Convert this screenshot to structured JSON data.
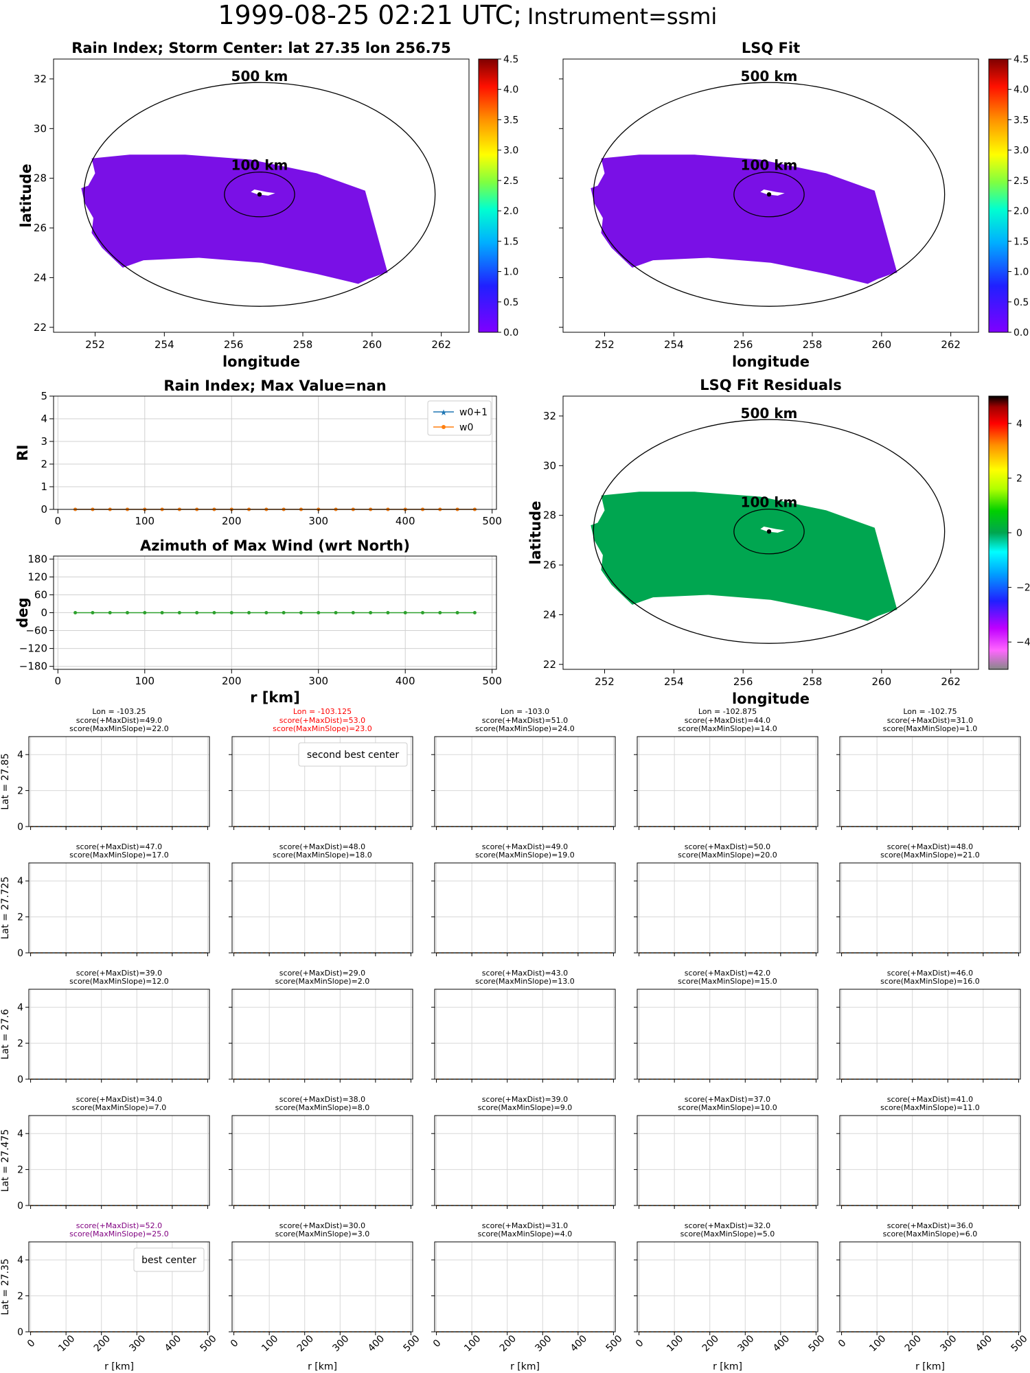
{
  "page": {
    "title_main": "1999-08-25 02:21 UTC;",
    "title_instrument": "Instrument=ssmi"
  },
  "chart_data": [
    {
      "id": "rain-index-map",
      "type": "heatmap",
      "title": "Rain Index; Storm Center: lat 27.35 lon 256.75",
      "xlabel": "longitude",
      "ylabel": "latitude",
      "xlim": [
        250.8,
        262.8
      ],
      "ylim": [
        21.8,
        32.8
      ],
      "xticks": [
        252,
        254,
        256,
        258,
        260,
        262
      ],
      "yticks": [
        22,
        24,
        26,
        28,
        30,
        32
      ],
      "center": {
        "lon": 256.75,
        "lat": 27.35
      },
      "rings": [
        {
          "label": "500 km"
        },
        {
          "label": "100 km"
        }
      ],
      "field_value": 0.0,
      "field_color": "#7a10e6",
      "colorbar": {
        "min": 0,
        "max": 4.5,
        "ticks": [
          "0.0",
          "0.5",
          "1.0",
          "1.5",
          "2.0",
          "2.5",
          "3.0",
          "3.5",
          "4.0",
          "4.5"
        ],
        "colormap": "rainbow"
      }
    },
    {
      "id": "lsq-fit-map",
      "type": "heatmap",
      "title": "LSQ Fit",
      "xlabel": "longitude",
      "ylabel": "",
      "xlim": [
        250.8,
        262.8
      ],
      "ylim": [
        21.8,
        32.8
      ],
      "xticks": [
        252,
        254,
        256,
        258,
        260,
        262
      ],
      "center": {
        "lon": 256.75,
        "lat": 27.35
      },
      "rings": [
        {
          "label": "500 km"
        },
        {
          "label": "100 km"
        }
      ],
      "field_value": 0.0,
      "field_color": "#7a10e6",
      "colorbar": {
        "min": 0,
        "max": 4.5,
        "ticks": [
          "0.0",
          "0.5",
          "1.0",
          "1.5",
          "2.0",
          "2.5",
          "3.0",
          "3.5",
          "4.0",
          "4.5"
        ],
        "colormap": "rainbow"
      }
    },
    {
      "id": "rain-index-profile",
      "type": "line",
      "title": "Rain Index; Max Value=nan",
      "xlabel": "",
      "ylabel": "RI",
      "xlim": [
        -5,
        505
      ],
      "ylim": [
        0,
        5
      ],
      "xticks": [
        0,
        100,
        200,
        300,
        400,
        500
      ],
      "yticks": [
        0,
        1,
        2,
        3,
        4,
        5
      ],
      "grid": true,
      "legend": "top-right",
      "x": [
        20,
        40,
        60,
        80,
        100,
        120,
        140,
        160,
        180,
        200,
        220,
        240,
        260,
        280,
        300,
        320,
        340,
        360,
        380,
        400,
        420,
        440,
        460,
        480
      ],
      "series": [
        {
          "name": "w0+1",
          "color": "#1f77b4",
          "marker": "star",
          "values": [
            0,
            0,
            0,
            0,
            0,
            0,
            0,
            0,
            0,
            0,
            0,
            0,
            0,
            0,
            0,
            0,
            0,
            0,
            0,
            0,
            0,
            0,
            0,
            0
          ]
        },
        {
          "name": "w0",
          "color": "#ff7f0e",
          "marker": "dot",
          "values": [
            0,
            0,
            0,
            0,
            0,
            0,
            0,
            0,
            0,
            0,
            0,
            0,
            0,
            0,
            0,
            0,
            0,
            0,
            0,
            0,
            0,
            0,
            0,
            0
          ]
        }
      ]
    },
    {
      "id": "azimuth-profile",
      "type": "line",
      "title": "Azimuth of Max Wind (wrt North)",
      "xlabel": "r [km]",
      "ylabel": "deg",
      "xlim": [
        -5,
        505
      ],
      "ylim": [
        -190,
        190
      ],
      "xticks": [
        0,
        100,
        200,
        300,
        400,
        500
      ],
      "yticks": [
        180,
        120,
        60,
        0,
        -60,
        -120,
        -180
      ],
      "ytick_labels": [
        "180",
        "120",
        "60",
        "0",
        "−60",
        "−120",
        "−180"
      ],
      "grid": true,
      "x": [
        20,
        40,
        60,
        80,
        100,
        120,
        140,
        160,
        180,
        200,
        220,
        240,
        260,
        280,
        300,
        320,
        340,
        360,
        380,
        400,
        420,
        440,
        460,
        480
      ],
      "series": [
        {
          "color": "#2ca02c",
          "values": [
            0,
            0,
            0,
            0,
            0,
            0,
            0,
            0,
            0,
            0,
            0,
            0,
            0,
            0,
            0,
            0,
            0,
            0,
            0,
            0,
            0,
            0,
            0,
            0
          ]
        }
      ]
    },
    {
      "id": "lsq-residuals-map",
      "type": "heatmap",
      "title": "LSQ Fit Residuals",
      "xlabel": "longitude",
      "ylabel": "latitude",
      "xlim": [
        250.8,
        262.8
      ],
      "ylim": [
        21.8,
        32.8
      ],
      "xticks": [
        252,
        254,
        256,
        258,
        260,
        262
      ],
      "yticks": [
        22,
        24,
        26,
        28,
        30,
        32
      ],
      "center": {
        "lon": 256.75,
        "lat": 27.35
      },
      "rings": [
        {
          "label": "500 km"
        },
        {
          "label": "100 km"
        }
      ],
      "field_value": 0.0,
      "field_color": "#00a650",
      "colorbar": {
        "min": -5,
        "max": 5,
        "ticks": [
          "4",
          "2",
          "0",
          "−2",
          "−4"
        ],
        "colormap": "spectral"
      }
    },
    {
      "id": "candidate-centers-grid",
      "type": "line",
      "xlabel": "r [km]",
      "xlim": [
        -5,
        505
      ],
      "ylim": [
        0,
        5
      ],
      "xticks": [
        0,
        100,
        200,
        300,
        400,
        500
      ],
      "yticks": [
        0,
        2,
        4
      ],
      "row_labels": [
        "Lat = 27.85",
        "Lat = 27.725",
        "Lat = 27.6",
        "Lat = 27.475",
        "Lat = 27.35"
      ],
      "col_labels": [
        "Lon = -103.25",
        "Lon = -103.125",
        "Lon = -103.0",
        "Lon = -102.875",
        "Lon = -102.75"
      ],
      "x": [
        0,
        20,
        40,
        60,
        80,
        100,
        120,
        140,
        160,
        180,
        200,
        220,
        240,
        260,
        280,
        300,
        320,
        340,
        360,
        380,
        400,
        420,
        440,
        460,
        480,
        500
      ],
      "values": [
        0,
        0,
        0,
        0,
        0,
        0,
        0,
        0,
        0,
        0,
        0,
        0,
        0,
        0,
        0,
        0,
        0,
        0,
        0,
        0,
        0,
        0,
        0,
        0,
        0,
        0
      ],
      "series_colors": [
        "#1f77b4",
        "#ff7f0e"
      ],
      "panels": [
        [
          {
            "s1": "score(+MaxDist)=49.0",
            "s2": "score(MaxMinSlope)=22.0",
            "color": "#000000"
          },
          {
            "s1": "score(+MaxDist)=53.0",
            "s2": "score(MaxMinSlope)=23.0",
            "color": "#ff0000",
            "legend": "second best center"
          },
          {
            "s1": "score(+MaxDist)=51.0",
            "s2": "score(MaxMinSlope)=24.0",
            "color": "#000000"
          },
          {
            "s1": "score(+MaxDist)=44.0",
            "s2": "score(MaxMinSlope)=14.0",
            "color": "#000000"
          },
          {
            "s1": "score(+MaxDist)=31.0",
            "s2": "score(MaxMinSlope)=1.0",
            "color": "#000000"
          }
        ],
        [
          {
            "s1": "score(+MaxDist)=47.0",
            "s2": "score(MaxMinSlope)=17.0",
            "color": "#000000"
          },
          {
            "s1": "score(+MaxDist)=48.0",
            "s2": "score(MaxMinSlope)=18.0",
            "color": "#000000"
          },
          {
            "s1": "score(+MaxDist)=49.0",
            "s2": "score(MaxMinSlope)=19.0",
            "color": "#000000"
          },
          {
            "s1": "score(+MaxDist)=50.0",
            "s2": "score(MaxMinSlope)=20.0",
            "color": "#000000"
          },
          {
            "s1": "score(+MaxDist)=48.0",
            "s2": "score(MaxMinSlope)=21.0",
            "color": "#000000"
          }
        ],
        [
          {
            "s1": "score(+MaxDist)=39.0",
            "s2": "score(MaxMinSlope)=12.0",
            "color": "#000000"
          },
          {
            "s1": "score(+MaxDist)=29.0",
            "s2": "score(MaxMinSlope)=2.0",
            "color": "#000000"
          },
          {
            "s1": "score(+MaxDist)=43.0",
            "s2": "score(MaxMinSlope)=13.0",
            "color": "#000000"
          },
          {
            "s1": "score(+MaxDist)=42.0",
            "s2": "score(MaxMinSlope)=15.0",
            "color": "#000000"
          },
          {
            "s1": "score(+MaxDist)=46.0",
            "s2": "score(MaxMinSlope)=16.0",
            "color": "#000000"
          }
        ],
        [
          {
            "s1": "score(+MaxDist)=34.0",
            "s2": "score(MaxMinSlope)=7.0",
            "color": "#000000"
          },
          {
            "s1": "score(+MaxDist)=38.0",
            "s2": "score(MaxMinSlope)=8.0",
            "color": "#000000"
          },
          {
            "s1": "score(+MaxDist)=39.0",
            "s2": "score(MaxMinSlope)=9.0",
            "color": "#000000"
          },
          {
            "s1": "score(+MaxDist)=37.0",
            "s2": "score(MaxMinSlope)=10.0",
            "color": "#000000"
          },
          {
            "s1": "score(+MaxDist)=41.0",
            "s2": "score(MaxMinSlope)=11.0",
            "color": "#000000"
          }
        ],
        [
          {
            "s1": "score(+MaxDist)=52.0",
            "s2": "score(MaxMinSlope)=25.0",
            "color": "#800080",
            "legend": "best center"
          },
          {
            "s1": "score(+MaxDist)=30.0",
            "s2": "score(MaxMinSlope)=3.0",
            "color": "#000000"
          },
          {
            "s1": "score(+MaxDist)=31.0",
            "s2": "score(MaxMinSlope)=4.0",
            "color": "#000000"
          },
          {
            "s1": "score(+MaxDist)=32.0",
            "s2": "score(MaxMinSlope)=5.0",
            "color": "#000000"
          },
          {
            "s1": "score(+MaxDist)=36.0",
            "s2": "score(MaxMinSlope)=6.0",
            "color": "#000000"
          }
        ]
      ]
    }
  ]
}
